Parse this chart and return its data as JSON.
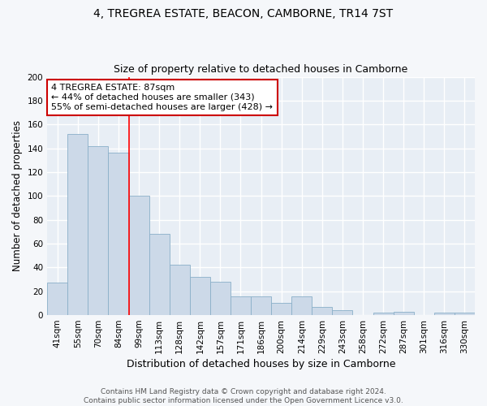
{
  "title": "4, TREGREA ESTATE, BEACON, CAMBORNE, TR14 7ST",
  "subtitle": "Size of property relative to detached houses in Camborne",
  "xlabel": "Distribution of detached houses by size in Camborne",
  "ylabel": "Number of detached properties",
  "categories": [
    "41sqm",
    "55sqm",
    "70sqm",
    "84sqm",
    "99sqm",
    "113sqm",
    "128sqm",
    "142sqm",
    "157sqm",
    "171sqm",
    "186sqm",
    "200sqm",
    "214sqm",
    "229sqm",
    "243sqm",
    "258sqm",
    "272sqm",
    "287sqm",
    "301sqm",
    "316sqm",
    "330sqm"
  ],
  "values": [
    27,
    152,
    142,
    136,
    100,
    68,
    42,
    32,
    28,
    16,
    16,
    10,
    16,
    7,
    4,
    0,
    2,
    3,
    0,
    2,
    2
  ],
  "bar_color": "#ccd9e8",
  "bar_edge_color": "#8aafc8",
  "background_color": "#e8eef5",
  "fig_background_color": "#f5f7fa",
  "grid_color": "#ffffff",
  "red_line_x": 3.5,
  "annotation_text": "4 TREGREA ESTATE: 87sqm\n← 44% of detached houses are smaller (343)\n55% of semi-detached houses are larger (428) →",
  "annotation_box_color": "#ffffff",
  "annotation_box_edge_color": "#cc0000",
  "ylim": [
    0,
    200
  ],
  "yticks": [
    0,
    20,
    40,
    60,
    80,
    100,
    120,
    140,
    160,
    180,
    200
  ],
  "footer_text": "Contains HM Land Registry data © Crown copyright and database right 2024.\nContains public sector information licensed under the Open Government Licence v3.0.",
  "title_fontsize": 10,
  "subtitle_fontsize": 9,
  "xlabel_fontsize": 9,
  "ylabel_fontsize": 8.5,
  "tick_fontsize": 7.5,
  "annotation_fontsize": 8,
  "footer_fontsize": 6.5
}
